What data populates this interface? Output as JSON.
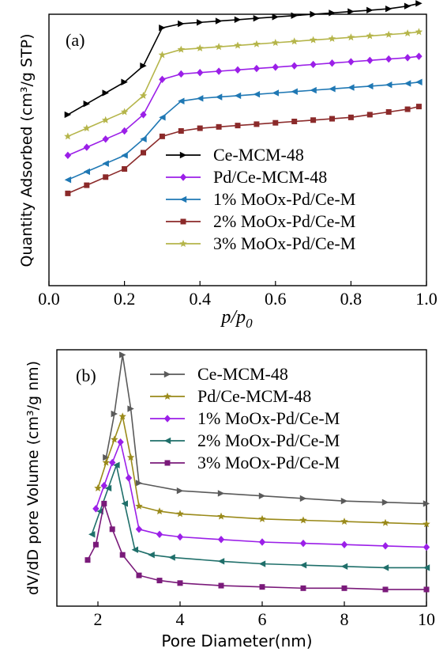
{
  "chart_data": [
    {
      "type": "line",
      "panel": "(a)",
      "xlabel": "p/p0",
      "ylabel": "Quantity Adsorbed (cm³/g STP)",
      "xlim": [
        0.0,
        1.0
      ],
      "ylim": [
        0,
        100
      ],
      "y_ticks_shown": false,
      "x_ticks": [
        "0.0",
        "0.2",
        "0.4",
        "0.6",
        "0.8",
        "1.0"
      ],
      "legend_position": "lower-right",
      "series": [
        {
          "name": "Ce-MCM-48",
          "color": "#000000",
          "marker": "triangle-right",
          "x": [
            0.05,
            0.1,
            0.15,
            0.2,
            0.25,
            0.3,
            0.35,
            0.4,
            0.45,
            0.5,
            0.55,
            0.6,
            0.65,
            0.7,
            0.75,
            0.8,
            0.85,
            0.9,
            0.95,
            0.98
          ],
          "y": [
            63,
            67,
            71,
            75,
            81,
            95,
            96.5,
            97,
            97.5,
            98,
            98.5,
            99,
            99.5,
            100,
            100.5,
            101,
            101.5,
            102,
            103,
            104
          ]
        },
        {
          "name": "Pd/Ce-MCM-48",
          "color": "#9b1fe8",
          "marker": "diamond",
          "x": [
            0.05,
            0.1,
            0.15,
            0.2,
            0.25,
            0.3,
            0.35,
            0.4,
            0.45,
            0.5,
            0.55,
            0.6,
            0.65,
            0.7,
            0.75,
            0.8,
            0.85,
            0.9,
            0.95,
            0.98
          ],
          "y": [
            48,
            51,
            54,
            57,
            63,
            76,
            78,
            78.5,
            79,
            79.5,
            80,
            80.5,
            81,
            81.5,
            82,
            82.5,
            83,
            83.5,
            84,
            84.5
          ]
        },
        {
          "name": "1% MoOx-Pd/Ce-M",
          "color": "#1f78b4",
          "marker": "triangle-left",
          "x": [
            0.05,
            0.1,
            0.15,
            0.2,
            0.25,
            0.3,
            0.35,
            0.4,
            0.45,
            0.5,
            0.55,
            0.6,
            0.65,
            0.7,
            0.75,
            0.8,
            0.85,
            0.9,
            0.95,
            0.98
          ],
          "y": [
            39,
            42,
            45,
            48,
            54,
            62,
            68,
            69,
            69.5,
            70,
            70.5,
            71,
            71.5,
            72,
            72.5,
            73,
            73.5,
            74,
            74.5,
            75
          ]
        },
        {
          "name": "2% MoOx-Pd/Ce-M",
          "color": "#8b2a2a",
          "marker": "square",
          "x": [
            0.05,
            0.1,
            0.15,
            0.2,
            0.25,
            0.3,
            0.35,
            0.4,
            0.45,
            0.5,
            0.55,
            0.6,
            0.65,
            0.7,
            0.75,
            0.8,
            0.85,
            0.9,
            0.95,
            0.98
          ],
          "y": [
            34,
            37,
            40,
            43,
            49,
            55,
            57,
            58,
            58.5,
            59,
            59.5,
            60,
            60.5,
            61,
            61.5,
            62,
            63,
            64,
            65,
            66
          ]
        },
        {
          "name": "3% MoOx-Pd/Ce-M",
          "color": "#b5b54a",
          "marker": "star",
          "x": [
            0.05,
            0.1,
            0.15,
            0.2,
            0.25,
            0.3,
            0.35,
            0.4,
            0.45,
            0.5,
            0.55,
            0.6,
            0.65,
            0.7,
            0.75,
            0.8,
            0.85,
            0.9,
            0.95,
            0.98
          ],
          "y": [
            55,
            58,
            61,
            64,
            70,
            85,
            87,
            87.5,
            88,
            88.5,
            89,
            89.5,
            90,
            90.5,
            91,
            91.5,
            92,
            92.5,
            93,
            93.5
          ]
        }
      ]
    },
    {
      "type": "line",
      "panel": "(b)",
      "xlabel": "Pore Diameter(nm)",
      "ylabel": "dV/dD pore Volume (cm³/g nm)",
      "xlim": [
        1,
        10
      ],
      "ylim": [
        0,
        100
      ],
      "y_ticks_shown": false,
      "x_ticks": [
        "2",
        "4",
        "6",
        "8",
        "10"
      ],
      "legend_position": "top-right",
      "series": [
        {
          "name": "Ce-MCM-48",
          "color": "#5a5a5a",
          "marker": "triangle-right",
          "x": [
            2.2,
            2.4,
            2.6,
            2.8,
            3.0,
            4.0,
            5.0,
            6.0,
            7.0,
            8.0,
            9.0,
            10.0
          ],
          "y": [
            58,
            75,
            98,
            77,
            48,
            45,
            44,
            43,
            42,
            41,
            40.5,
            40
          ]
        },
        {
          "name": "Pd/Ce-MCM-48",
          "color": "#9a8a1a",
          "marker": "star",
          "x": [
            2.0,
            2.2,
            2.4,
            2.6,
            2.8,
            3.0,
            3.5,
            4.0,
            5.0,
            6.0,
            7.0,
            8.0,
            9.0,
            10.0
          ],
          "y": [
            46,
            56,
            65,
            74,
            58,
            39,
            37,
            36,
            35,
            34,
            33.5,
            33,
            32.5,
            32
          ]
        },
        {
          "name": "1% MoOx-Pd/Ce-M",
          "color": "#9b1fe8",
          "marker": "diamond",
          "x": [
            1.95,
            2.15,
            2.35,
            2.55,
            2.75,
            3.0,
            3.5,
            4.0,
            5.0,
            6.0,
            7.0,
            8.0,
            9.0,
            10.0
          ],
          "y": [
            38,
            47,
            56,
            64,
            50,
            30,
            28,
            27,
            26,
            25,
            24.5,
            24,
            23.5,
            23
          ]
        },
        {
          "name": "2% MoOx-Pd/Ce-M",
          "color": "#1f6f6a",
          "marker": "triangle-left",
          "x": [
            1.85,
            2.05,
            2.25,
            2.45,
            2.65,
            2.9,
            3.3,
            3.8,
            5.0,
            6.0,
            7.0,
            8.0,
            9.0,
            10.0
          ],
          "y": [
            28,
            37,
            46,
            55,
            40,
            22,
            20,
            19,
            17.5,
            16.5,
            16,
            15.5,
            15,
            15
          ]
        },
        {
          "name": "3% MoOx-Pd/Ce-M",
          "color": "#7a1a7a",
          "marker": "square",
          "x": [
            1.75,
            1.95,
            2.15,
            2.35,
            2.6,
            3.0,
            3.5,
            4.0,
            5.0,
            6.0,
            7.0,
            8.0,
            9.0,
            10.0
          ],
          "y": [
            18,
            24,
            40,
            30,
            20,
            12,
            10,
            9,
            8,
            7.5,
            7,
            7,
            6.5,
            6.5
          ]
        }
      ]
    }
  ]
}
